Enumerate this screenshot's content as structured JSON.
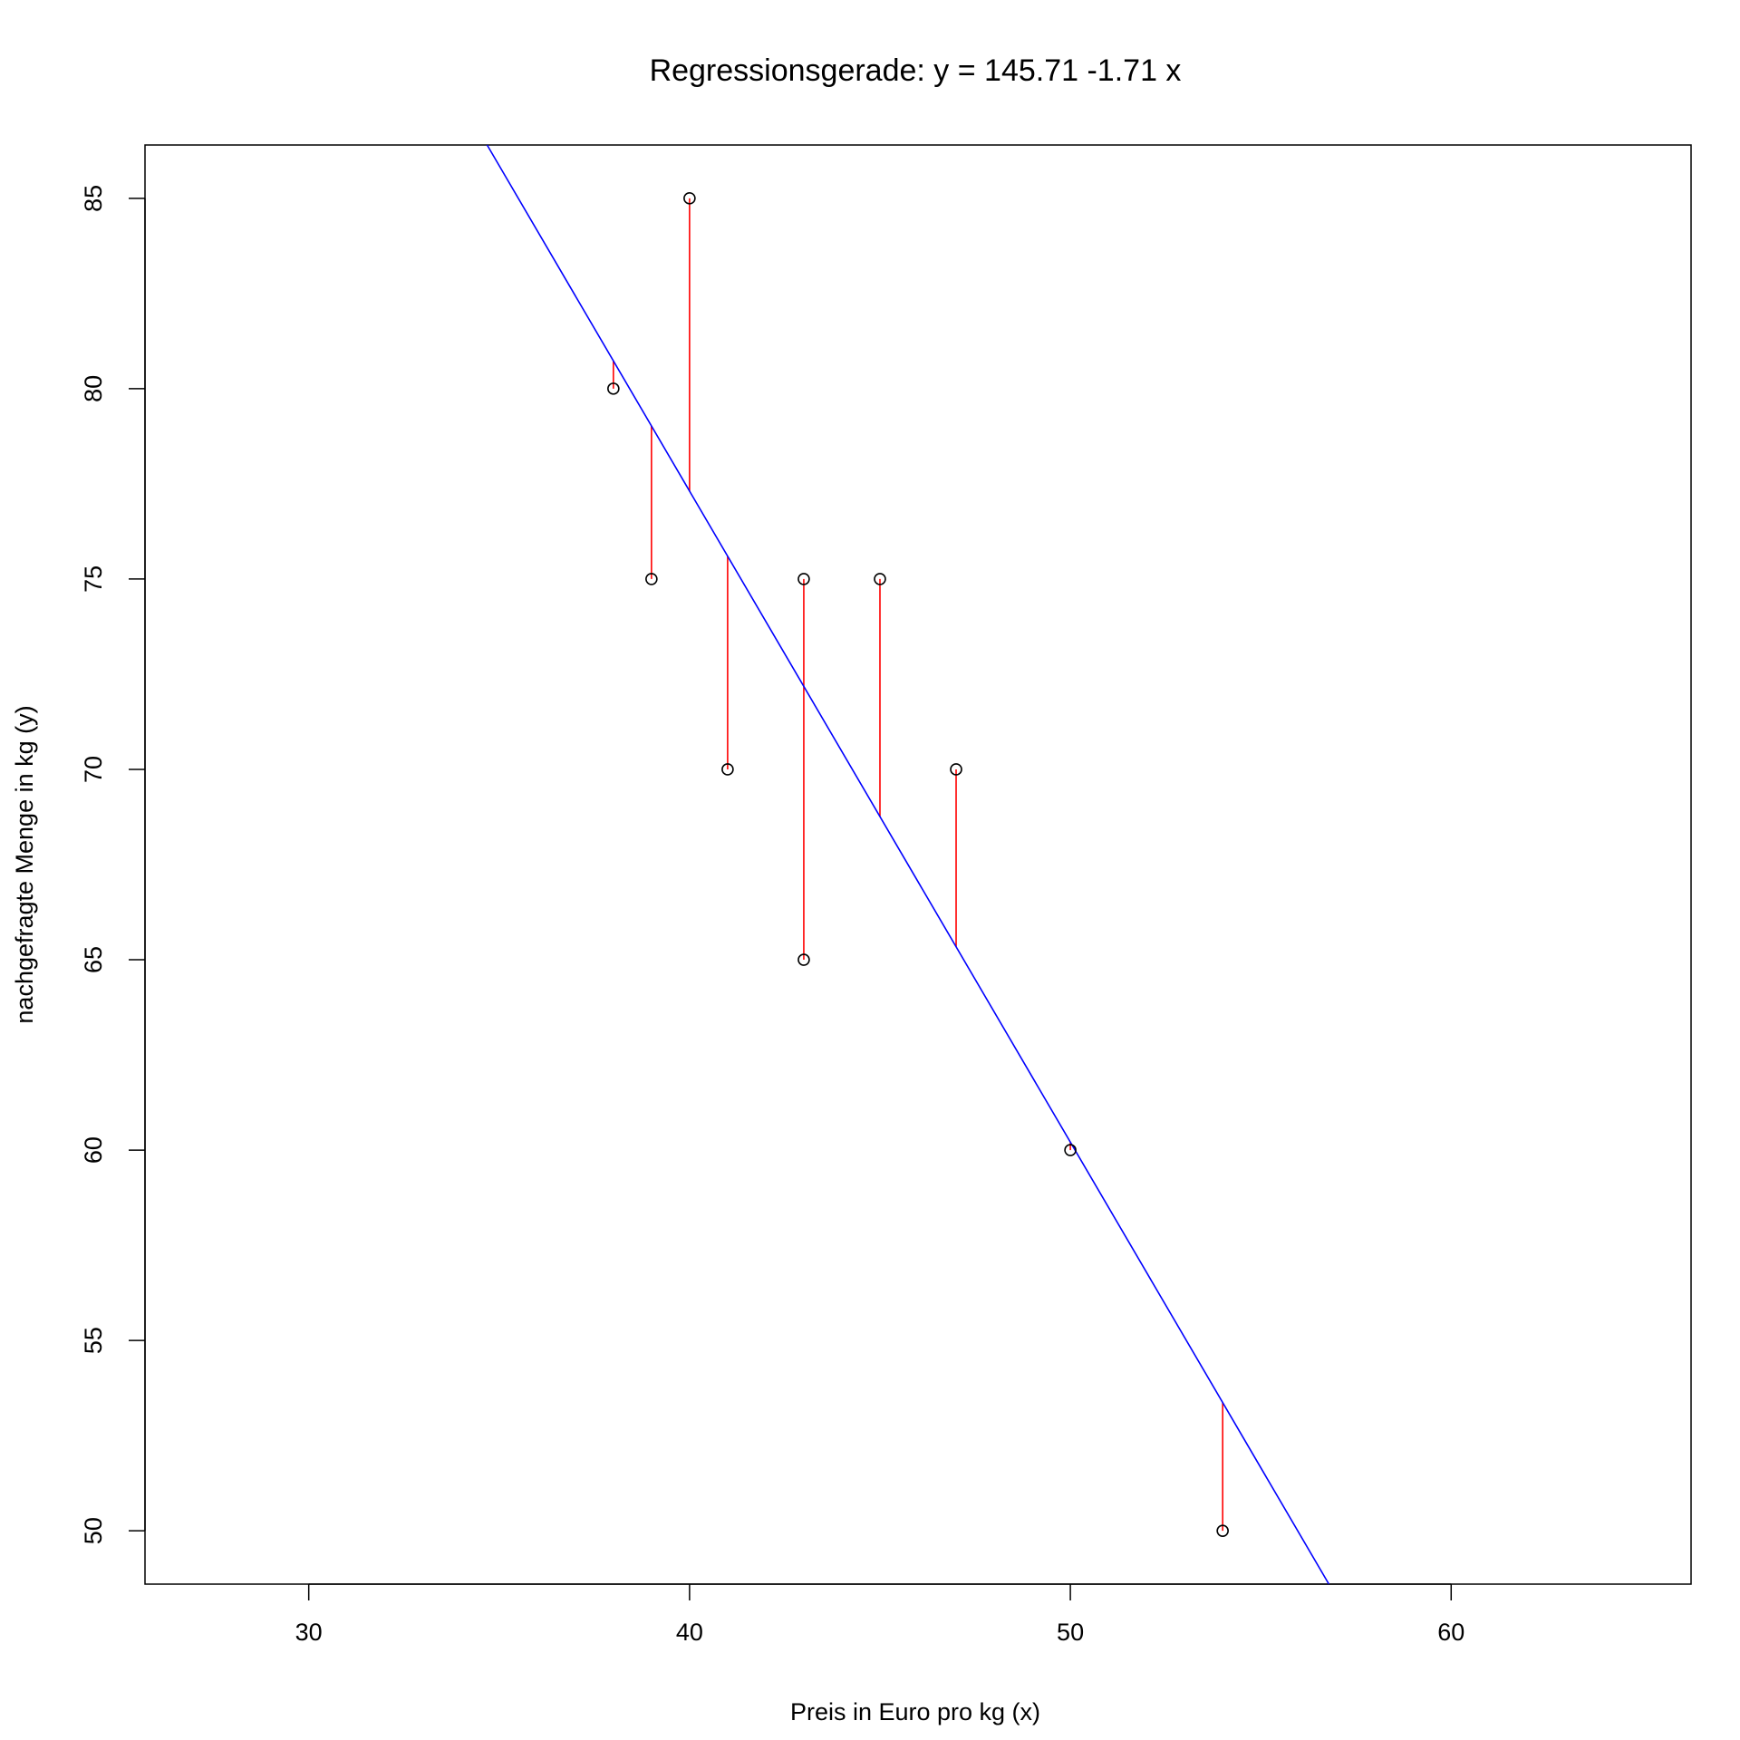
{
  "chart_data": {
    "type": "scatter",
    "title": "Regressionsgerade: y = 145.71 -1.71 x",
    "xlabel": "Preis in Euro pro kg (x)",
    "ylabel": "nachgefragte Menge in kg (y)",
    "xlim": [
      25.7,
      66.3
    ],
    "ylim": [
      48.6,
      86.4
    ],
    "x_ticks": [
      30,
      40,
      50,
      60
    ],
    "y_ticks": [
      50,
      55,
      60,
      65,
      70,
      75,
      80,
      85
    ],
    "grid": false,
    "legend": "none",
    "points": {
      "x": [
        38,
        39,
        40,
        41,
        43,
        43,
        45,
        47,
        50,
        54
      ],
      "y": [
        80,
        75,
        85,
        70,
        75,
        65,
        75,
        70,
        60,
        50
      ],
      "color": "#000000"
    },
    "regression_line": {
      "intercept": 145.71,
      "slope": -1.71,
      "color": "#0000ff"
    },
    "residual_color": "#ff0000"
  }
}
